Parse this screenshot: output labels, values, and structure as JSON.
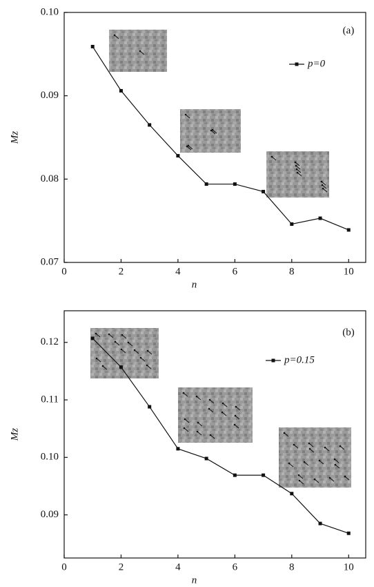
{
  "chart_data": [
    {
      "type": "line",
      "annotation": "(a)",
      "x_label": "n",
      "y_label": "Mz",
      "x": [
        1,
        2,
        3,
        4,
        5,
        6,
        7,
        8,
        9,
        10
      ],
      "series": [
        {
          "name": "p=0",
          "color": "#111111",
          "values": [
            0.0959,
            0.0906,
            0.0865,
            0.0828,
            0.0794,
            0.0794,
            0.0785,
            0.0746,
            0.0753,
            0.0739
          ]
        }
      ],
      "xlim": [
        0,
        10.6
      ],
      "xticks": [
        0,
        2,
        4,
        6,
        8,
        10
      ],
      "ylim": [
        0.07,
        0.1
      ],
      "yticks": [
        0.07,
        0.08,
        0.09,
        {
          "value": 0.1,
          "label": "0.10"
        }
      ]
    },
    {
      "type": "line",
      "annotation": "(b)",
      "x_label": "n",
      "y_label": "Mz",
      "x": [
        1,
        2,
        3,
        4,
        5,
        6,
        7,
        8,
        9,
        10
      ],
      "series": [
        {
          "name": "p=0.15",
          "color": "#111111",
          "values": [
            0.1207,
            0.1157,
            0.1088,
            0.1015,
            0.0998,
            0.0969,
            0.0969,
            0.0937,
            0.0885,
            0.0868
          ]
        }
      ],
      "xlim": [
        0,
        10.6
      ],
      "xticks": [
        0,
        2,
        4,
        6,
        8,
        10
      ],
      "ylim": [
        0.0825,
        0.1255
      ],
      "yticks": [
        0.09,
        {
          "value": 0.1,
          "label": "0.10"
        },
        {
          "value": 0.11,
          "label": "0.11"
        },
        {
          "value": 0.12,
          "label": "0.12"
        }
      ]
    }
  ]
}
